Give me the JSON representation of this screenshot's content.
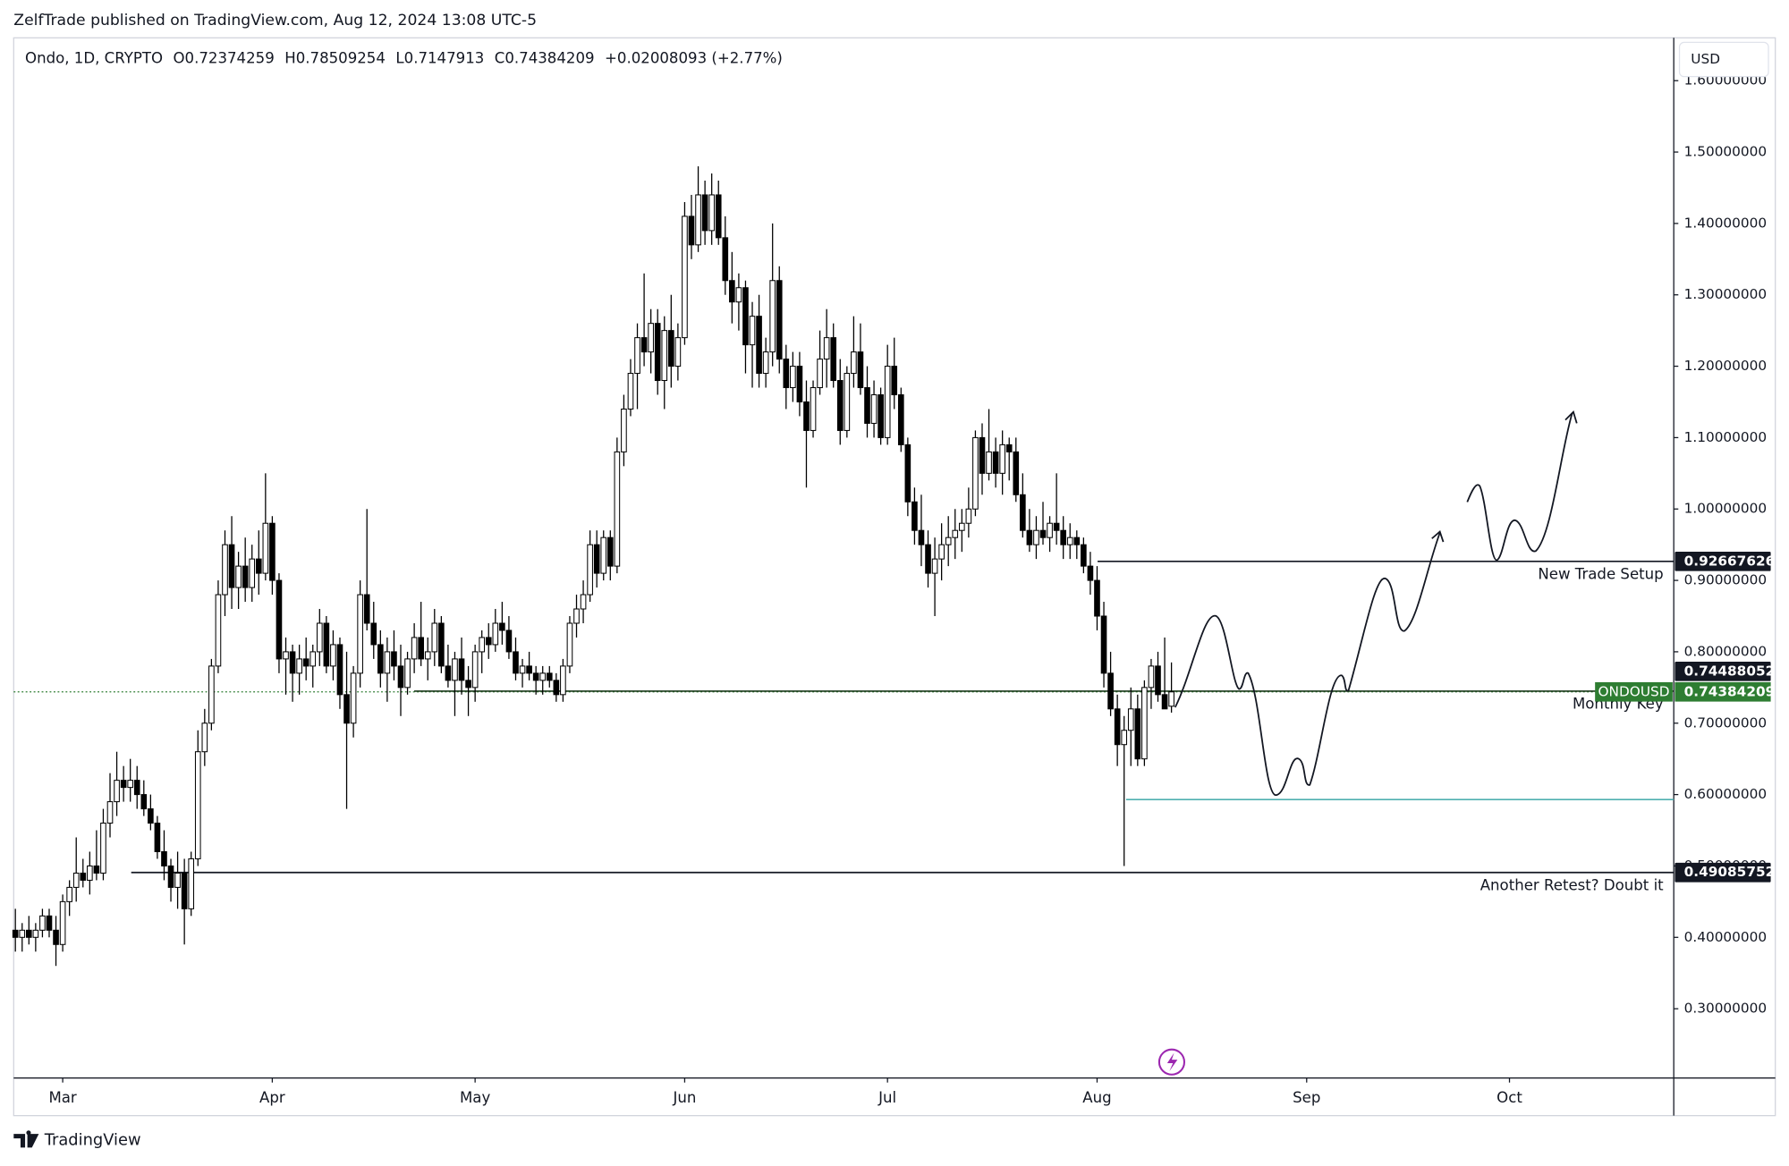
{
  "header": {
    "published": "ZelfTrade published on TradingView.com, Aug 12, 2024 13:08 UTC-5",
    "brand": "TradingView"
  },
  "chart_data": {
    "type": "candlestick",
    "legend": {
      "symbol": "Ondo, 1D, CRYPTO",
      "ohlc_keys": [
        "O",
        "H",
        "L",
        "C"
      ],
      "change": "+0.02008093 (+2.77%)"
    },
    "currency": "USD",
    "symbol_label": "ONDOUSD",
    "up_color": "#ffffff",
    "down_color": "#000000",
    "wick_color": "#000000",
    "last_price_color": "#2e7d32",
    "values": [
      [
        0.41,
        0.44,
        0.38,
        0.4
      ],
      [
        0.4,
        0.42,
        0.38,
        0.41
      ],
      [
        0.41,
        0.43,
        0.39,
        0.4
      ],
      [
        0.4,
        0.42,
        0.38,
        0.41
      ],
      [
        0.41,
        0.44,
        0.4,
        0.43
      ],
      [
        0.43,
        0.44,
        0.4,
        0.41
      ],
      [
        0.41,
        0.43,
        0.36,
        0.39
      ],
      [
        0.39,
        0.46,
        0.38,
        0.45
      ],
      [
        0.45,
        0.48,
        0.43,
        0.47
      ],
      [
        0.47,
        0.54,
        0.45,
        0.49
      ],
      [
        0.49,
        0.51,
        0.47,
        0.48
      ],
      [
        0.48,
        0.52,
        0.46,
        0.5
      ],
      [
        0.5,
        0.55,
        0.48,
        0.49
      ],
      [
        0.49,
        0.58,
        0.48,
        0.56
      ],
      [
        0.56,
        0.63,
        0.54,
        0.59
      ],
      [
        0.59,
        0.66,
        0.57,
        0.62
      ],
      [
        0.62,
        0.64,
        0.59,
        0.61
      ],
      [
        0.61,
        0.65,
        0.59,
        0.62
      ],
      [
        0.62,
        0.64,
        0.58,
        0.6
      ],
      [
        0.6,
        0.62,
        0.57,
        0.58
      ],
      [
        0.58,
        0.6,
        0.55,
        0.56
      ],
      [
        0.56,
        0.57,
        0.51,
        0.52
      ],
      [
        0.52,
        0.55,
        0.48,
        0.5
      ],
      [
        0.5,
        0.51,
        0.45,
        0.47
      ],
      [
        0.47,
        0.52,
        0.44,
        0.49
      ],
      [
        0.49,
        0.51,
        0.39,
        0.44
      ],
      [
        0.44,
        0.52,
        0.43,
        0.51
      ],
      [
        0.51,
        0.69,
        0.5,
        0.66
      ],
      [
        0.66,
        0.72,
        0.64,
        0.7
      ],
      [
        0.7,
        0.79,
        0.69,
        0.78
      ],
      [
        0.78,
        0.9,
        0.77,
        0.88
      ],
      [
        0.88,
        0.97,
        0.85,
        0.95
      ],
      [
        0.95,
        0.99,
        0.86,
        0.89
      ],
      [
        0.89,
        0.94,
        0.86,
        0.92
      ],
      [
        0.92,
        0.96,
        0.87,
        0.89
      ],
      [
        0.89,
        0.95,
        0.87,
        0.93
      ],
      [
        0.93,
        0.97,
        0.88,
        0.91
      ],
      [
        0.91,
        1.05,
        0.9,
        0.98
      ],
      [
        0.98,
        0.99,
        0.88,
        0.9
      ],
      [
        0.9,
        0.91,
        0.77,
        0.79
      ],
      [
        0.79,
        0.82,
        0.74,
        0.8
      ],
      [
        0.8,
        0.81,
        0.73,
        0.77
      ],
      [
        0.77,
        0.81,
        0.74,
        0.79
      ],
      [
        0.79,
        0.82,
        0.76,
        0.78
      ],
      [
        0.78,
        0.81,
        0.75,
        0.8
      ],
      [
        0.8,
        0.86,
        0.78,
        0.84
      ],
      [
        0.84,
        0.85,
        0.77,
        0.78
      ],
      [
        0.78,
        0.83,
        0.76,
        0.81
      ],
      [
        0.81,
        0.82,
        0.72,
        0.74
      ],
      [
        0.74,
        0.8,
        0.58,
        0.7
      ],
      [
        0.7,
        0.78,
        0.68,
        0.77
      ],
      [
        0.77,
        0.9,
        0.75,
        0.88
      ],
      [
        0.88,
        1.0,
        0.83,
        0.84
      ],
      [
        0.84,
        0.87,
        0.79,
        0.81
      ],
      [
        0.81,
        0.83,
        0.75,
        0.77
      ],
      [
        0.77,
        0.82,
        0.73,
        0.8
      ],
      [
        0.8,
        0.83,
        0.76,
        0.78
      ],
      [
        0.78,
        0.81,
        0.71,
        0.75
      ],
      [
        0.75,
        0.8,
        0.74,
        0.79
      ],
      [
        0.79,
        0.84,
        0.77,
        0.82
      ],
      [
        0.82,
        0.87,
        0.78,
        0.79
      ],
      [
        0.79,
        0.82,
        0.76,
        0.8
      ],
      [
        0.8,
        0.86,
        0.78,
        0.84
      ],
      [
        0.84,
        0.85,
        0.77,
        0.78
      ],
      [
        0.78,
        0.81,
        0.75,
        0.76
      ],
      [
        0.76,
        0.8,
        0.71,
        0.79
      ],
      [
        0.79,
        0.82,
        0.74,
        0.76
      ],
      [
        0.76,
        0.78,
        0.71,
        0.75
      ],
      [
        0.75,
        0.81,
        0.73,
        0.8
      ],
      [
        0.8,
        0.83,
        0.77,
        0.82
      ],
      [
        0.82,
        0.84,
        0.79,
        0.81
      ],
      [
        0.81,
        0.86,
        0.8,
        0.84
      ],
      [
        0.84,
        0.87,
        0.81,
        0.83
      ],
      [
        0.83,
        0.85,
        0.79,
        0.8
      ],
      [
        0.8,
        0.82,
        0.76,
        0.77
      ],
      [
        0.77,
        0.79,
        0.75,
        0.78
      ],
      [
        0.78,
        0.8,
        0.76,
        0.77
      ],
      [
        0.77,
        0.78,
        0.74,
        0.76
      ],
      [
        0.76,
        0.78,
        0.74,
        0.77
      ],
      [
        0.77,
        0.78,
        0.75,
        0.76
      ],
      [
        0.76,
        0.77,
        0.73,
        0.74
      ],
      [
        0.74,
        0.79,
        0.73,
        0.78
      ],
      [
        0.78,
        0.85,
        0.77,
        0.84
      ],
      [
        0.84,
        0.88,
        0.82,
        0.86
      ],
      [
        0.86,
        0.9,
        0.84,
        0.88
      ],
      [
        0.88,
        0.97,
        0.87,
        0.95
      ],
      [
        0.95,
        0.97,
        0.89,
        0.91
      ],
      [
        0.91,
        0.97,
        0.9,
        0.96
      ],
      [
        0.96,
        0.97,
        0.9,
        0.92
      ],
      [
        0.92,
        1.1,
        0.91,
        1.08
      ],
      [
        1.08,
        1.16,
        1.06,
        1.14
      ],
      [
        1.14,
        1.21,
        1.13,
        1.19
      ],
      [
        1.19,
        1.26,
        1.14,
        1.24
      ],
      [
        1.24,
        1.33,
        1.2,
        1.22
      ],
      [
        1.22,
        1.28,
        1.19,
        1.26
      ],
      [
        1.26,
        1.28,
        1.16,
        1.18
      ],
      [
        1.18,
        1.27,
        1.14,
        1.25
      ],
      [
        1.25,
        1.3,
        1.17,
        1.2
      ],
      [
        1.2,
        1.26,
        1.18,
        1.24
      ],
      [
        1.24,
        1.43,
        1.23,
        1.41
      ],
      [
        1.41,
        1.44,
        1.35,
        1.37
      ],
      [
        1.37,
        1.48,
        1.36,
        1.44
      ],
      [
        1.44,
        1.46,
        1.37,
        1.39
      ],
      [
        1.39,
        1.47,
        1.37,
        1.44
      ],
      [
        1.44,
        1.46,
        1.37,
        1.38
      ],
      [
        1.38,
        1.41,
        1.3,
        1.32
      ],
      [
        1.32,
        1.36,
        1.26,
        1.29
      ],
      [
        1.29,
        1.33,
        1.25,
        1.31
      ],
      [
        1.31,
        1.32,
        1.19,
        1.23
      ],
      [
        1.23,
        1.29,
        1.17,
        1.27
      ],
      [
        1.27,
        1.3,
        1.17,
        1.19
      ],
      [
        1.19,
        1.24,
        1.17,
        1.22
      ],
      [
        1.22,
        1.4,
        1.2,
        1.32
      ],
      [
        1.32,
        1.34,
        1.19,
        1.21
      ],
      [
        1.21,
        1.23,
        1.14,
        1.17
      ],
      [
        1.17,
        1.22,
        1.15,
        1.2
      ],
      [
        1.2,
        1.22,
        1.13,
        1.15
      ],
      [
        1.15,
        1.18,
        1.03,
        1.11
      ],
      [
        1.11,
        1.18,
        1.1,
        1.17
      ],
      [
        1.17,
        1.25,
        1.16,
        1.21
      ],
      [
        1.21,
        1.28,
        1.17,
        1.24
      ],
      [
        1.24,
        1.26,
        1.17,
        1.18
      ],
      [
        1.18,
        1.21,
        1.09,
        1.11
      ],
      [
        1.11,
        1.2,
        1.1,
        1.19
      ],
      [
        1.19,
        1.27,
        1.17,
        1.22
      ],
      [
        1.22,
        1.26,
        1.16,
        1.17
      ],
      [
        1.17,
        1.2,
        1.1,
        1.12
      ],
      [
        1.12,
        1.18,
        1.1,
        1.16
      ],
      [
        1.16,
        1.17,
        1.09,
        1.1
      ],
      [
        1.1,
        1.23,
        1.09,
        1.2
      ],
      [
        1.2,
        1.24,
        1.14,
        1.16
      ],
      [
        1.16,
        1.17,
        1.08,
        1.09
      ],
      [
        1.09,
        1.1,
        0.99,
        1.01
      ],
      [
        1.01,
        1.03,
        0.95,
        0.97
      ],
      [
        0.97,
        1.02,
        0.92,
        0.95
      ],
      [
        0.95,
        0.97,
        0.89,
        0.91
      ],
      [
        0.91,
        0.96,
        0.85,
        0.93
      ],
      [
        0.93,
        0.98,
        0.9,
        0.95
      ],
      [
        0.95,
        0.99,
        0.92,
        0.96
      ],
      [
        0.96,
        1.0,
        0.93,
        0.97
      ],
      [
        0.97,
        1.0,
        0.94,
        0.98
      ],
      [
        0.98,
        1.03,
        0.96,
        1.0
      ],
      [
        1.0,
        1.11,
        0.99,
        1.1
      ],
      [
        1.1,
        1.12,
        1.02,
        1.05
      ],
      [
        1.05,
        1.14,
        1.04,
        1.08
      ],
      [
        1.08,
        1.1,
        1.03,
        1.05
      ],
      [
        1.05,
        1.11,
        1.02,
        1.09
      ],
      [
        1.09,
        1.1,
        1.04,
        1.08
      ],
      [
        1.08,
        1.1,
        1.01,
        1.02
      ],
      [
        1.02,
        1.05,
        0.96,
        0.97
      ],
      [
        0.97,
        1.0,
        0.94,
        0.95
      ],
      [
        0.95,
        0.99,
        0.93,
        0.97
      ],
      [
        0.97,
        1.01,
        0.95,
        0.96
      ],
      [
        0.96,
        0.99,
        0.94,
        0.98
      ],
      [
        0.98,
        1.05,
        0.95,
        0.97
      ],
      [
        0.97,
        0.99,
        0.93,
        0.95
      ],
      [
        0.95,
        0.98,
        0.93,
        0.96
      ],
      [
        0.96,
        0.97,
        0.93,
        0.95
      ],
      [
        0.95,
        0.96,
        0.91,
        0.92
      ],
      [
        0.92,
        0.94,
        0.88,
        0.9
      ],
      [
        0.9,
        0.92,
        0.83,
        0.85
      ],
      [
        0.85,
        0.87,
        0.75,
        0.77
      ],
      [
        0.77,
        0.8,
        0.71,
        0.72
      ],
      [
        0.72,
        0.74,
        0.64,
        0.67
      ],
      [
        0.67,
        0.71,
        0.5,
        0.69
      ],
      [
        0.69,
        0.75,
        0.64,
        0.72
      ],
      [
        0.72,
        0.74,
        0.64,
        0.65
      ],
      [
        0.65,
        0.76,
        0.64,
        0.75
      ],
      [
        0.75,
        0.79,
        0.72,
        0.78
      ],
      [
        0.78,
        0.8,
        0.73,
        0.74
      ],
      [
        0.74,
        0.82,
        0.72,
        0.72
      ],
      [
        0.72374259,
        0.78509254,
        0.7147913,
        0.74384209
      ]
    ],
    "xlim": [
      -0.25,
      245.3
    ],
    "xticks": [
      {
        "value": 7,
        "label": "Mar"
      },
      {
        "value": 38,
        "label": "Apr"
      },
      {
        "value": 68,
        "label": "May"
      },
      {
        "value": 99,
        "label": "Jun"
      },
      {
        "value": 129,
        "label": "Jul"
      },
      {
        "value": 160,
        "label": "Aug"
      },
      {
        "value": 191,
        "label": "Sep"
      },
      {
        "value": 221,
        "label": "Oct"
      }
    ],
    "ylim": [
      0.203,
      1.66
    ],
    "yticks": [
      {
        "value": 0.3,
        "label": "0.30000000"
      },
      {
        "value": 0.4,
        "label": "0.40000000"
      },
      {
        "value": 0.5,
        "label": "0.50000000"
      },
      {
        "value": 0.6,
        "label": "0.60000000"
      },
      {
        "value": 0.7,
        "label": "0.70000000"
      },
      {
        "value": 0.8,
        "label": "0.80000000"
      },
      {
        "value": 0.9,
        "label": "0.90000000"
      },
      {
        "value": 1.0,
        "label": "1.00000000"
      },
      {
        "value": 1.1,
        "label": "1.10000000"
      },
      {
        "value": 1.2,
        "label": "1.20000000"
      },
      {
        "value": 1.3,
        "label": "1.30000000"
      },
      {
        "value": 1.4,
        "label": "1.40000000"
      },
      {
        "value": 1.5,
        "label": "1.50000000"
      },
      {
        "value": 1.6,
        "label": "1.60000000"
      }
    ],
    "levels": [
      {
        "value": 0.92667626,
        "label": "New Trade Setup",
        "color": "#131722"
      },
      {
        "value": 0.74488052,
        "label": "Monthly Key",
        "color": "#1b3a1b"
      },
      {
        "value": 0.593,
        "color": "#4fb0b0"
      },
      {
        "value": 0.49085752,
        "label": "Another Retest? Doubt it",
        "color": "#131722"
      }
    ]
  }
}
